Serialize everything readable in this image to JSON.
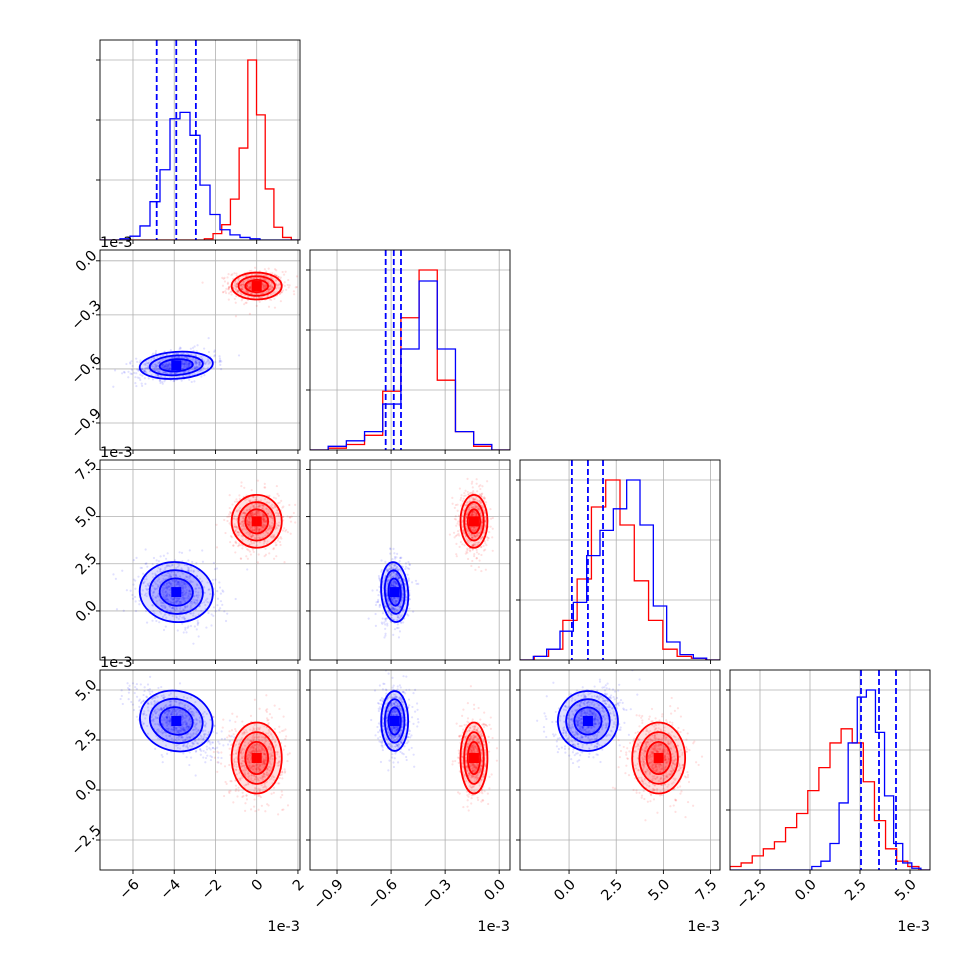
{
  "chart_data": {
    "type": "corner",
    "grid": true,
    "colors": {
      "blue": "#0000ff",
      "red": "#ff0000"
    },
    "parameters": [
      {
        "limits": [
          -7.6,
          2.1
        ],
        "ticks": [
          -6,
          -4,
          -2,
          0,
          2
        ],
        "tick_labels": [
          "−6",
          "−4",
          "−2",
          "0",
          "2"
        ],
        "offset": "1e-3",
        "quantile_lines_blue": [
          -4.85,
          -3.9,
          -2.95
        ],
        "hist_blue": [
          0,
          0,
          0.01,
          0.03,
          0.11,
          0.3,
          0.55,
          0.95,
          1.0,
          0.82,
          0.43,
          0.2,
          0.08,
          0.04,
          0.02,
          0.01,
          0,
          0,
          0,
          0
        ],
        "hist_red": [
          0,
          0,
          0,
          0,
          0,
          0,
          0,
          0,
          0,
          0,
          0,
          0,
          0.01,
          0.05,
          0.12,
          0.32,
          0.72,
          1.41,
          0.98,
          0.4,
          0.1,
          0.02,
          0
        ]
      },
      {
        "limits": [
          -1.05,
          0.06
        ],
        "ticks": [
          -0.9,
          -0.6,
          -0.3,
          0.0
        ],
        "tick_labels": [
          "−0.9",
          "−0.6",
          "−0.3",
          "0.0"
        ],
        "offset": "1e-3",
        "quantile_lines_blue": [
          -0.63,
          -0.585,
          -0.545
        ],
        "hist_blue": [
          0,
          0.02,
          0.05,
          0.1,
          0.25,
          0.55,
          0.92,
          0.55,
          0.1,
          0.03,
          0
        ],
        "hist_red": [
          0,
          0.01,
          0.03,
          0.08,
          0.32,
          0.72,
          0.98,
          0.38,
          0.1,
          0.02,
          0
        ]
      },
      {
        "limits": [
          -2.6,
          8.0
        ],
        "ticks": [
          0.0,
          2.5,
          5.0,
          7.5
        ],
        "tick_labels": [
          "0.0",
          "2.5",
          "5.0",
          "7.5"
        ],
        "offset": "1e-3",
        "quantile_lines_blue": [
          0.15,
          1.0,
          1.8
        ],
        "hist_blue": [
          0,
          0.02,
          0.06,
          0.16,
          0.32,
          0.58,
          0.72,
          0.84,
          1.0,
          0.75,
          0.3,
          0.1,
          0.03,
          0.01,
          0
        ],
        "hist_red": [
          0,
          0.02,
          0.06,
          0.22,
          0.45,
          0.85,
          1.0,
          0.75,
          0.44,
          0.22,
          0.06,
          0.02,
          0.01,
          0
        ]
      },
      {
        "limits": [
          -4.0,
          6.0
        ],
        "ticks": [
          -2.5,
          0.0,
          2.5,
          5.0
        ],
        "tick_labels": [
          "−2.5",
          "0.0",
          "2.5",
          "5.0"
        ],
        "offset": "1e-3",
        "quantile_lines_blue": [
          2.55,
          3.45,
          4.3
        ],
        "hist_blue": [
          0,
          0,
          0,
          0,
          0,
          0,
          0,
          0,
          0,
          0.02,
          0.05,
          0.15,
          0.38,
          0.72,
          0.98,
          1.02,
          0.78,
          0.42,
          0.15,
          0.04,
          0.01,
          0
        ],
        "hist_red": [
          0.02,
          0.04,
          0.08,
          0.12,
          0.16,
          0.24,
          0.32,
          0.45,
          0.58,
          0.72,
          0.8,
          0.72,
          0.5,
          0.28,
          0.12,
          0.05,
          0.02,
          0
        ]
      }
    ],
    "blue": {
      "means": [
        -3.9,
        -0.58,
        1.0,
        3.45
      ],
      "stds": [
        0.95,
        0.04,
        0.85,
        0.8
      ],
      "corr": {
        "1-0": 0.3,
        "2-0": -0.2,
        "2-1": 0.05,
        "3-0": -0.55,
        "3-1": 0.0,
        "3-2": 0.3
      }
    },
    "red": {
      "means": [
        0.0,
        -0.14,
        4.75,
        1.6
      ],
      "stds": [
        0.65,
        0.04,
        0.75,
        0.95
      ],
      "corr": {
        "1-0": 0.0,
        "2-0": 0.0,
        "2-1": 0.0,
        "3-0": 0.0,
        "3-1": 0.0,
        "3-2": 0.0
      }
    },
    "contour_levels_sigma": [
      1.0,
      1.6,
      2.2
    ]
  }
}
